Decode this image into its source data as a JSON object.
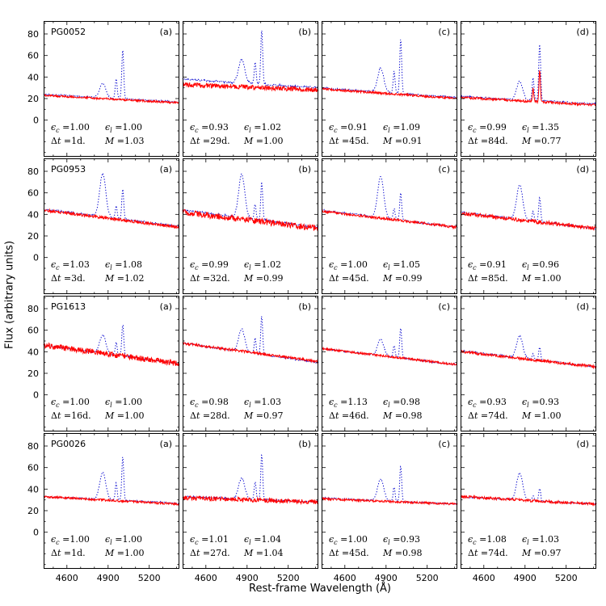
{
  "chart_data": {
    "type": "line",
    "title": "",
    "xlabel": "Rest-frame Wavelength (Å)",
    "ylabel": "Flux (arbitrary units)",
    "x_range": [
      4430,
      5420
    ],
    "y_range": [
      -34,
      92
    ],
    "x_ticks": [
      4600,
      4900,
      5200
    ],
    "y_ticks": [
      0,
      20,
      40,
      60,
      80
    ],
    "x_minor_step": 100,
    "y_minor_step": 10,
    "grid": false,
    "legend": null,
    "colors": {
      "dotted": "#0000cd",
      "solid": "#ff0000"
    },
    "lines": {
      "hbeta": 4861,
      "oiii_4959": 4959,
      "oiii_5007": 5007
    },
    "symbols": {
      "epsilon": "ϵ",
      "sub_c": "c",
      "sub_l": "l",
      "delta": "Δ",
      "t": "t",
      "mass": "M"
    },
    "rows": [
      {
        "object": "PG0052",
        "panels": [
          {
            "label": "(a)",
            "eps_c": "1.00",
            "eps_l": "1.00",
            "dt": "1d.",
            "M": "1.03",
            "blue": {
              "c0": 24,
              "c1": 17,
              "noise": 0.6,
              "hb": 13,
              "o3": 45
            },
            "red": {
              "c0": 23,
              "c1": 16,
              "noise": 0.9,
              "hb": 0,
              "o3": 0
            }
          },
          {
            "label": "(b)",
            "eps_c": "0.93",
            "eps_l": "1.02",
            "dt": "29d.",
            "M": "1.00",
            "blue": {
              "c0": 38,
              "c1": 30,
              "noise": 0.9,
              "hb": 22,
              "o3": 50
            },
            "red": {
              "c0": 33,
              "c1": 28,
              "noise": 2.2,
              "hb": 0,
              "o3": 0
            }
          },
          {
            "label": "(c)",
            "eps_c": "0.91",
            "eps_l": "1.09",
            "dt": "45d.",
            "M": "0.91",
            "blue": {
              "c0": 30,
              "c1": 21,
              "noise": 0.7,
              "hb": 22,
              "o3": 50
            },
            "red": {
              "c0": 29,
              "c1": 20,
              "noise": 1.0,
              "hb": 0,
              "o3": 0
            }
          },
          {
            "label": "(d)",
            "eps_c": "0.99",
            "eps_l": "1.35",
            "dt": "84d.",
            "M": "0.77",
            "blue": {
              "c0": 22,
              "c1": 15,
              "noise": 0.7,
              "hb": 17,
              "o3": 52
            },
            "red": {
              "c0": 21,
              "c1": 14,
              "noise": 1.1,
              "hb": 0,
              "o3": 30,
              "o3s": 5
            }
          }
        ]
      },
      {
        "object": "PG0953",
        "panels": [
          {
            "label": "(a)",
            "eps_c": "1.03",
            "eps_l": "1.08",
            "dt": "3d.",
            "M": "1.02",
            "blue": {
              "c0": 45,
              "c1": 29,
              "noise": 0.7,
              "hb": 40,
              "o3": 28
            },
            "red": {
              "c0": 44,
              "c1": 28,
              "noise": 1.3,
              "hb": 0,
              "o3": 0
            }
          },
          {
            "label": "(b)",
            "eps_c": "0.99",
            "eps_l": "1.02",
            "dt": "32d.",
            "M": "0.99",
            "blue": {
              "c0": 44,
              "c1": 28,
              "noise": 0.9,
              "hb": 40,
              "o3": 35
            },
            "red": {
              "c0": 42,
              "c1": 27,
              "noise": 2.8,
              "hb": 0,
              "o3": 0
            }
          },
          {
            "label": "(c)",
            "eps_c": "1.00",
            "eps_l": "1.05",
            "dt": "45d.",
            "M": "0.99",
            "blue": {
              "c0": 44,
              "c1": 28,
              "noise": 0.7,
              "hb": 38,
              "o3": 25
            },
            "red": {
              "c0": 43,
              "c1": 28,
              "noise": 1.2,
              "hb": 0,
              "o3": 0
            }
          },
          {
            "label": "(d)",
            "eps_c": "0.91",
            "eps_l": "0.96",
            "dt": "85d.",
            "M": "1.00",
            "blue": {
              "c0": 42,
              "c1": 27,
              "noise": 0.7,
              "hb": 32,
              "o3": 22
            },
            "red": {
              "c0": 41,
              "c1": 27,
              "noise": 1.8,
              "hb": 0,
              "o3": 0
            }
          }
        ]
      },
      {
        "object": "PG1613",
        "panels": [
          {
            "label": "(a)",
            "eps_c": "1.00",
            "eps_l": "1.00",
            "dt": "16d.",
            "M": "1.00",
            "blue": {
              "c0": 46,
              "c1": 29,
              "noise": 0.8,
              "hb": 17,
              "o3": 29
            },
            "red": {
              "c0": 46,
              "c1": 29,
              "noise": 2.6,
              "hb": 0,
              "o3": 0
            }
          },
          {
            "label": "(b)",
            "eps_c": "0.98",
            "eps_l": "1.03",
            "dt": "28d.",
            "M": "0.97",
            "blue": {
              "c0": 48,
              "c1": 30,
              "noise": 0.7,
              "hb": 21,
              "o3": 35
            },
            "red": {
              "c0": 48,
              "c1": 31,
              "noise": 1.2,
              "hb": 0,
              "o3": 0
            }
          },
          {
            "label": "(c)",
            "eps_c": "1.13",
            "eps_l": "0.98",
            "dt": "46d.",
            "M": "0.98",
            "blue": {
              "c0": 43,
              "c1": 28,
              "noise": 0.7,
              "hb": 15,
              "o3": 28
            },
            "red": {
              "c0": 43,
              "c1": 28,
              "noise": 1.0,
              "hb": 0,
              "o3": 0
            }
          },
          {
            "label": "(d)",
            "eps_c": "0.93",
            "eps_l": "0.93",
            "dt": "74d.",
            "M": "1.00",
            "blue": {
              "c0": 41,
              "c1": 26,
              "noise": 0.7,
              "hb": 20,
              "o3": 12
            },
            "red": {
              "c0": 40,
              "c1": 26,
              "noise": 1.3,
              "hb": 0,
              "o3": 0
            }
          }
        ]
      },
      {
        "object": "PG0026",
        "panels": [
          {
            "label": "(a)",
            "eps_c": "1.00",
            "eps_l": "1.00",
            "dt": "1d.",
            "M": "1.00",
            "blue": {
              "c0": 33,
              "c1": 27,
              "noise": 0.6,
              "hb": 25,
              "o3": 40
            },
            "red": {
              "c0": 33,
              "c1": 26,
              "noise": 1.0,
              "hb": 0,
              "o3": 0
            }
          },
          {
            "label": "(b)",
            "eps_c": "1.01",
            "eps_l": "1.04",
            "dt": "27d.",
            "M": "1.04",
            "blue": {
              "c0": 33,
              "c1": 28,
              "noise": 0.8,
              "hb": 20,
              "o3": 42
            },
            "red": {
              "c0": 32,
              "c1": 28,
              "noise": 2.0,
              "hb": 0,
              "o3": 0
            }
          },
          {
            "label": "(c)",
            "eps_c": "1.00",
            "eps_l": "0.93",
            "dt": "45d.",
            "M": "0.98",
            "blue": {
              "c0": 32,
              "c1": 26,
              "noise": 0.6,
              "hb": 20,
              "o3": 33
            },
            "red": {
              "c0": 31,
              "c1": 26,
              "noise": 1.0,
              "hb": 0,
              "o3": 0
            }
          },
          {
            "label": "(d)",
            "eps_c": "1.08",
            "eps_l": "1.03",
            "dt": "74d.",
            "M": "0.97",
            "blue": {
              "c0": 33,
              "c1": 26,
              "noise": 0.6,
              "hb": 25,
              "o3": 12
            },
            "red": {
              "c0": 33,
              "c1": 26,
              "noise": 1.3,
              "hb": 0,
              "o3": 0
            }
          }
        ]
      }
    ]
  }
}
